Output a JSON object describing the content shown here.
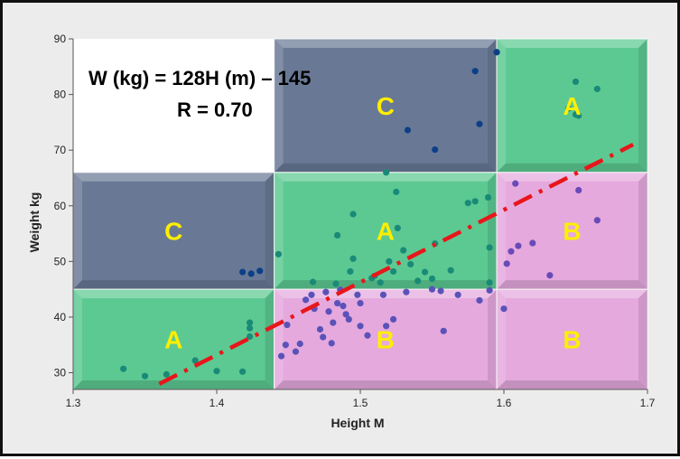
{
  "chart_data": {
    "type": "scatter",
    "xlabel": "Height M",
    "ylabel": "Weight kg",
    "xlim": [
      1.3,
      1.7
    ],
    "ylim": [
      27,
      90
    ],
    "x_ticks": [
      1.3,
      1.4,
      1.5,
      1.6,
      1.7
    ],
    "y_ticks": [
      30,
      40,
      50,
      60,
      70,
      80,
      90
    ],
    "annotations": {
      "equation": "W (kg) = 128H (m) – 145",
      "r_value": "R = 0.70"
    },
    "trendline": {
      "x": [
        1.36,
        1.69
      ],
      "y": [
        28.0,
        71.0
      ],
      "color": "#e8161a",
      "style": "dash-dot"
    },
    "zone_colors": {
      "A": "#3fbf7f",
      "B": "#e09ad8",
      "C": "#4f6282"
    },
    "zones": [
      {
        "label": "C",
        "x": [
          1.44,
          1.595
        ],
        "y": [
          66,
          90
        ]
      },
      {
        "label": "A",
        "x": [
          1.595,
          1.705
        ],
        "y": [
          66,
          90
        ]
      },
      {
        "label": "C",
        "x": [
          1.295,
          1.44
        ],
        "y": [
          45,
          66
        ]
      },
      {
        "label": "A",
        "x": [
          1.44,
          1.595
        ],
        "y": [
          45,
          66
        ]
      },
      {
        "label": "B",
        "x": [
          1.595,
          1.705
        ],
        "y": [
          45,
          66
        ]
      },
      {
        "label": "A",
        "x": [
          1.295,
          1.44
        ],
        "y": [
          27,
          45
        ]
      },
      {
        "label": "B",
        "x": [
          1.44,
          1.595
        ],
        "y": [
          27,
          45
        ]
      },
      {
        "label": "B",
        "x": [
          1.595,
          1.705
        ],
        "y": [
          27,
          45
        ]
      }
    ],
    "points": [
      [
        1.335,
        30.7
      ],
      [
        1.35,
        29.4
      ],
      [
        1.365,
        29.7
      ],
      [
        1.385,
        32.2
      ],
      [
        1.4,
        30.3
      ],
      [
        1.418,
        30.2
      ],
      [
        1.423,
        38.0
      ],
      [
        1.423,
        39.0
      ],
      [
        1.423,
        36.5
      ],
      [
        1.418,
        48.1
      ],
      [
        1.424,
        47.8
      ],
      [
        1.43,
        48.3
      ],
      [
        1.443,
        51.3
      ],
      [
        1.445,
        33.0
      ],
      [
        1.448,
        35.0
      ],
      [
        1.449,
        38.6
      ],
      [
        1.455,
        33.8
      ],
      [
        1.458,
        35.2
      ],
      [
        1.462,
        43.1
      ],
      [
        1.466,
        44.0
      ],
      [
        1.467,
        46.3
      ],
      [
        1.468,
        41.5
      ],
      [
        1.472,
        37.8
      ],
      [
        1.474,
        36.4
      ],
      [
        1.476,
        44.5
      ],
      [
        1.478,
        41.0
      ],
      [
        1.48,
        35.3
      ],
      [
        1.481,
        39.0
      ],
      [
        1.483,
        46.0
      ],
      [
        1.484,
        42.5
      ],
      [
        1.484,
        54.7
      ],
      [
        1.486,
        44.9
      ],
      [
        1.488,
        42.0
      ],
      [
        1.49,
        40.5
      ],
      [
        1.492,
        39.6
      ],
      [
        1.493,
        48.2
      ],
      [
        1.495,
        50.5
      ],
      [
        1.495,
        58.5
      ],
      [
        1.498,
        44.0
      ],
      [
        1.5,
        38.4
      ],
      [
        1.5,
        42.5
      ],
      [
        1.505,
        36.7
      ],
      [
        1.508,
        47.0
      ],
      [
        1.51,
        47.4
      ],
      [
        1.514,
        46.2
      ],
      [
        1.516,
        44.0
      ],
      [
        1.518,
        38.4
      ],
      [
        1.518,
        66.0
      ],
      [
        1.52,
        50.0
      ],
      [
        1.523,
        39.6
      ],
      [
        1.523,
        48.2
      ],
      [
        1.525,
        62.5
      ],
      [
        1.526,
        56.0
      ],
      [
        1.53,
        52.0
      ],
      [
        1.532,
        44.5
      ],
      [
        1.533,
        73.6
      ],
      [
        1.535,
        49.5
      ],
      [
        1.54,
        46.5
      ],
      [
        1.545,
        48.1
      ],
      [
        1.55,
        46.9
      ],
      [
        1.55,
        45.0
      ],
      [
        1.552,
        53.2
      ],
      [
        1.552,
        70.1
      ],
      [
        1.556,
        44.7
      ],
      [
        1.558,
        37.5
      ],
      [
        1.563,
        48.4
      ],
      [
        1.568,
        44.0
      ],
      [
        1.575,
        60.5
      ],
      [
        1.58,
        84.2
      ],
      [
        1.58,
        60.8
      ],
      [
        1.583,
        74.7
      ],
      [
        1.583,
        43.0
      ],
      [
        1.589,
        61.5
      ],
      [
        1.59,
        52.5
      ],
      [
        1.59,
        46.2
      ],
      [
        1.59,
        44.8
      ],
      [
        1.595,
        87.6
      ],
      [
        1.6,
        41.5
      ],
      [
        1.602,
        49.6
      ],
      [
        1.605,
        51.8
      ],
      [
        1.608,
        64.0
      ],
      [
        1.61,
        52.8
      ],
      [
        1.62,
        53.3
      ],
      [
        1.632,
        47.5
      ],
      [
        1.645,
        77.5
      ],
      [
        1.65,
        76.4
      ],
      [
        1.65,
        82.3
      ],
      [
        1.652,
        62.8
      ],
      [
        1.652,
        76.2
      ],
      [
        1.665,
        57.4
      ],
      [
        1.665,
        81.0
      ]
    ]
  }
}
